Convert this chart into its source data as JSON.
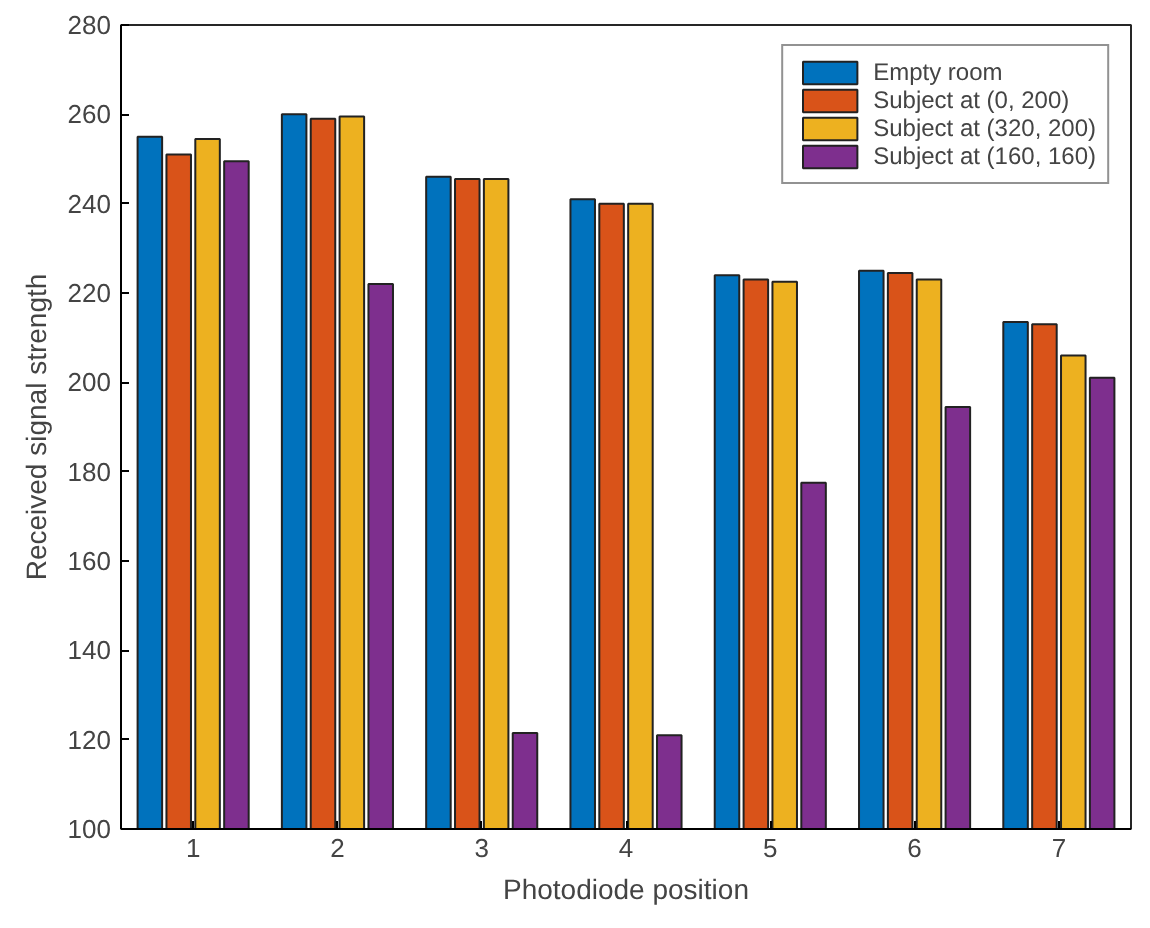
{
  "chart_data": {
    "type": "bar",
    "xlabel": "Photodiode position",
    "ylabel": "Received signal strength",
    "categories": [
      "1",
      "2",
      "3",
      "4",
      "5",
      "6",
      "7"
    ],
    "series": [
      {
        "name": "Empty room",
        "color": "#0072bd",
        "values": [
          255,
          260,
          246,
          241,
          224,
          225,
          213.5
        ]
      },
      {
        "name": "Subject at (0, 200)",
        "color": "#d95319",
        "values": [
          251,
          259,
          245.5,
          240,
          223,
          224.5,
          213
        ]
      },
      {
        "name": "Subject at (320, 200)",
        "color": "#edb120",
        "values": [
          254.5,
          259.5,
          245.5,
          240,
          222.5,
          223,
          206
        ]
      },
      {
        "name": "Subject at (160, 160)",
        "color": "#7e2f8e",
        "values": [
          249.5,
          222,
          121.5,
          121,
          177.5,
          194.5,
          201
        ]
      }
    ],
    "ylim": [
      100,
      280
    ],
    "yticks": [
      100,
      120,
      140,
      160,
      180,
      200,
      220,
      240,
      260,
      280
    ],
    "grid": false,
    "legend": "top right"
  }
}
